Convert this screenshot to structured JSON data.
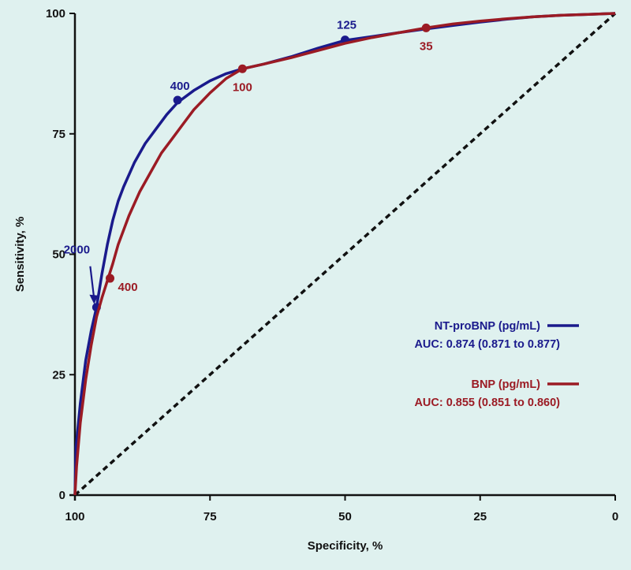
{
  "chart_data": {
    "type": "line",
    "title": "",
    "xlabel": "Specificity, %",
    "ylabel": "Sensitivity, %",
    "xlim": [
      100,
      0
    ],
    "ylim": [
      0,
      100
    ],
    "x_reversed": true,
    "xticks": [
      100,
      75,
      50,
      25,
      0
    ],
    "yticks": [
      0,
      25,
      50,
      75,
      100
    ],
    "grid": false,
    "legend_position": "lower-right",
    "reference_line": {
      "style": "dashed",
      "color": "#111111",
      "from": [
        100,
        0
      ],
      "to": [
        0,
        100
      ]
    },
    "series": [
      {
        "name": "NT-proBNP (pg/mL)",
        "auc_label": "AUC: 0.874 (0.871 to 0.877)",
        "color": "#1a1a8c",
        "x": [
          100,
          99.8,
          99,
          98,
          97,
          96,
          95,
          94,
          93,
          92,
          91,
          89,
          87,
          85,
          83,
          81,
          78,
          75,
          72,
          69,
          65,
          60,
          55,
          50,
          45,
          40,
          35,
          30,
          25,
          20,
          15,
          10,
          5,
          0
        ],
        "y": [
          0,
          10,
          19,
          28,
          34,
          39,
          46,
          52,
          57,
          61,
          64,
          69,
          73,
          76,
          79,
          81.5,
          84,
          86,
          87.5,
          88.5,
          89.5,
          91,
          92.8,
          94.4,
          95.2,
          96,
          96.8,
          97.5,
          98.2,
          98.8,
          99.3,
          99.6,
          99.8,
          100
        ],
        "points": [
          {
            "x": 96,
            "y": 39,
            "label": "2000",
            "arrow": true
          },
          {
            "x": 81,
            "y": 82,
            "label": "400"
          },
          {
            "x": 50,
            "y": 94.5,
            "label": "125"
          }
        ]
      },
      {
        "name": "BNP (pg/mL)",
        "auc_label": "AUC: 0.855 (0.851 to 0.860)",
        "color": "#9b1b24",
        "x": [
          100,
          99.7,
          99,
          98,
          97,
          96,
          95,
          94,
          93,
          92,
          90,
          88,
          86,
          84,
          82,
          80,
          78,
          75,
          72,
          69,
          65,
          60,
          55,
          50,
          45,
          40,
          35,
          30,
          25,
          20,
          15,
          10,
          5,
          0
        ],
        "y": [
          0,
          6,
          15,
          24,
          31,
          37,
          41,
          44.5,
          48,
          52,
          58,
          63,
          67,
          71,
          74,
          77,
          80,
          83.5,
          86.5,
          88.5,
          89.5,
          90.8,
          92.3,
          93.8,
          95,
          96,
          97,
          97.8,
          98.4,
          98.9,
          99.3,
          99.6,
          99.8,
          100
        ],
        "points": [
          {
            "x": 93.5,
            "y": 45,
            "label": "400"
          },
          {
            "x": 69,
            "y": 88.5,
            "label": "100"
          },
          {
            "x": 35,
            "y": 97,
            "label": "35"
          }
        ]
      }
    ]
  }
}
